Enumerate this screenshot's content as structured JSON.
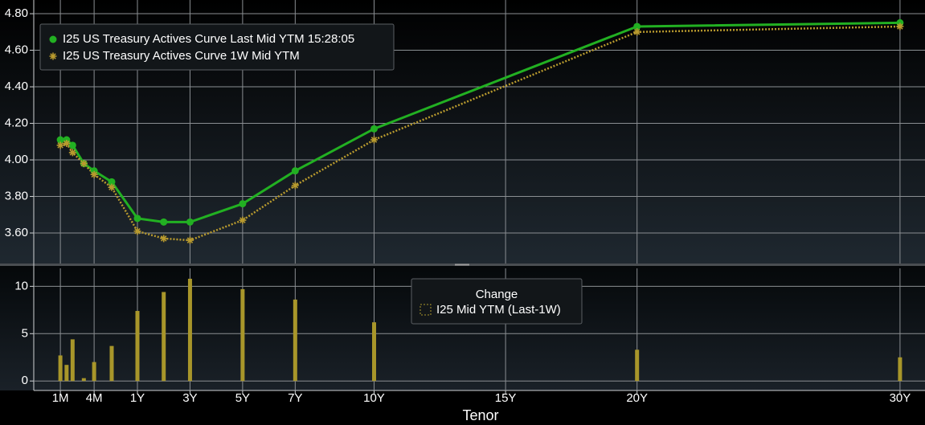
{
  "chart_data": [
    {
      "type": "line",
      "x": [
        0.0833,
        0.125,
        0.1667,
        0.25,
        0.3333,
        0.5,
        1,
        2,
        3,
        5,
        7,
        10,
        20,
        30
      ],
      "series": [
        {
          "name": "I25 US Treasury Actives Curve Last Mid YTM 15:28:05",
          "color": "#22b022",
          "marker": "circle",
          "dash": false,
          "values": [
            4.11,
            4.11,
            4.08,
            3.98,
            3.94,
            3.88,
            3.68,
            3.66,
            3.66,
            3.76,
            3.94,
            4.17,
            4.73,
            4.75
          ]
        },
        {
          "name": "I25 US Treasury Actives Curve 1W Mid YTM",
          "color": "#b89a2e",
          "marker": "asterisk",
          "dash": true,
          "values": [
            4.08,
            4.09,
            4.04,
            3.98,
            3.92,
            3.85,
            3.61,
            3.57,
            3.56,
            3.67,
            3.86,
            4.11,
            4.7,
            4.73
          ]
        }
      ],
      "xlim": [
        0,
        30.95
      ],
      "ylim": [
        3.433,
        4.875
      ],
      "yticks": [
        {
          "value": 3.6,
          "label": "3.60"
        },
        {
          "value": 3.8,
          "label": "3.80"
        },
        {
          "value": 4.0,
          "label": "4.00"
        },
        {
          "value": 4.2,
          "label": "4.20"
        },
        {
          "value": 4.4,
          "label": "4.40"
        },
        {
          "value": 4.6,
          "label": "4.60"
        },
        {
          "value": 4.8,
          "label": "4.80"
        }
      ],
      "grid": true
    },
    {
      "type": "bar",
      "legend_title": "Change",
      "x": [
        0.0833,
        0.125,
        0.1667,
        0.25,
        0.3333,
        0.5,
        1,
        2,
        3,
        5,
        7,
        10,
        20,
        30
      ],
      "series": [
        {
          "name": "I25 Mid YTM (Last-1W)",
          "color": "#a8962a",
          "values": [
            2.7,
            1.7,
            4.4,
            0.3,
            2.0,
            3.7,
            7.4,
            9.4,
            10.8,
            9.7,
            8.6,
            6.2,
            3.3,
            2.5
          ]
        }
      ],
      "xlim": [
        0,
        30.95
      ],
      "ylim": [
        -1.0,
        11.9
      ],
      "yticks": [
        0,
        5,
        10
      ],
      "xticks": [
        {
          "value": 0.0833,
          "label": "1M"
        },
        {
          "value": 0.3333,
          "label": "4M"
        },
        {
          "value": 1,
          "label": "1Y"
        },
        {
          "value": 3,
          "label": "3Y"
        },
        {
          "value": 5,
          "label": "5Y"
        },
        {
          "value": 7,
          "label": "7Y"
        },
        {
          "value": 10,
          "label": "10Y"
        },
        {
          "value": 15,
          "label": "15Y"
        },
        {
          "value": 20,
          "label": "20Y"
        },
        {
          "value": 30,
          "label": "30Y"
        }
      ],
      "xlabel": "Tenor",
      "grid": true
    }
  ]
}
